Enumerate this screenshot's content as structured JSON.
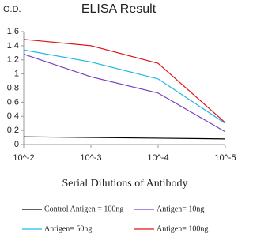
{
  "chart_data": {
    "type": "line",
    "title": "ELISA Result",
    "y_label": "O.D.",
    "x_label": "Serial Dilutions of Antibody",
    "categories": [
      "10^-2",
      "10^-3",
      "10^-4",
      "10^-5"
    ],
    "series": [
      {
        "name": "Control Antigen = 100ng",
        "color": "#000000",
        "values": [
          0.11,
          0.1,
          0.09,
          0.08
        ]
      },
      {
        "name": "Antigen= 10ng",
        "color": "#7a3fbf",
        "values": [
          1.28,
          0.96,
          0.73,
          0.18
        ]
      },
      {
        "name": "Antigen= 50ng",
        "color": "#1fb8e6",
        "values": [
          1.34,
          1.17,
          0.93,
          0.3
        ]
      },
      {
        "name": "Antigen= 100ng",
        "color": "#e0151b",
        "values": [
          1.49,
          1.4,
          1.15,
          0.31
        ]
      }
    ],
    "ylim": [
      0,
      1.6
    ],
    "yticks": [
      0,
      0.2,
      0.4,
      0.6,
      0.8,
      1,
      1.2,
      1.4,
      1.6
    ],
    "grid": false
  }
}
